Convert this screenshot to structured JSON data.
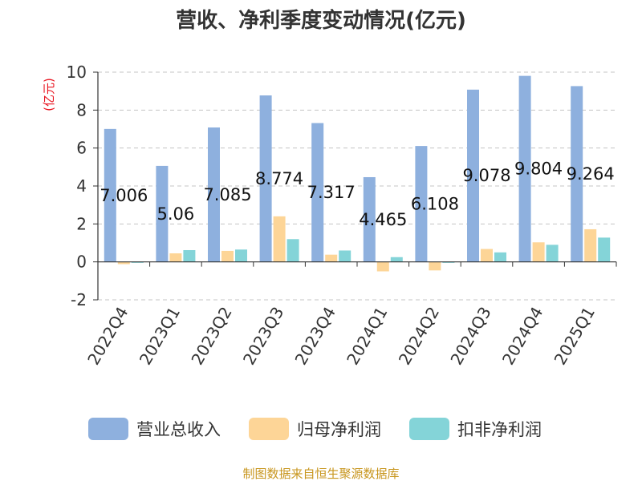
{
  "chart_data": {
    "type": "bar",
    "title": "营收、净利季度变动情况(亿元)",
    "ylabel": "(亿元)",
    "ylim": [
      -2,
      10
    ],
    "yticks": [
      -2,
      0,
      2,
      4,
      6,
      8,
      10
    ],
    "grid": true,
    "legend_position": "bottom",
    "categories": [
      "2022Q4",
      "2023Q1",
      "2023Q2",
      "2023Q3",
      "2023Q4",
      "2024Q1",
      "2024Q2",
      "2024Q3",
      "2024Q4",
      "2025Q1"
    ],
    "series": [
      {
        "name": "营业总收入",
        "color": "#8eb0de",
        "values": [
          7.006,
          5.06,
          7.085,
          8.774,
          7.317,
          4.465,
          6.108,
          9.078,
          9.804,
          9.264
        ],
        "labels": [
          "7.006",
          "5.06",
          "7.085",
          "8.774",
          "7.317",
          "4.465",
          "6.108",
          "9.078",
          "9.804",
          "9.264"
        ]
      },
      {
        "name": "归母净利润",
        "color": "#fdd597",
        "values": [
          -0.12,
          0.45,
          0.58,
          2.4,
          0.38,
          -0.5,
          -0.45,
          0.68,
          1.03,
          1.72
        ]
      },
      {
        "name": "扣非净利润",
        "color": "#84d4d8",
        "values": [
          -0.05,
          0.62,
          0.65,
          1.2,
          0.6,
          0.25,
          -0.05,
          0.5,
          0.9,
          1.28
        ]
      }
    ],
    "source": "制图数据来自恒生聚源数据库"
  }
}
